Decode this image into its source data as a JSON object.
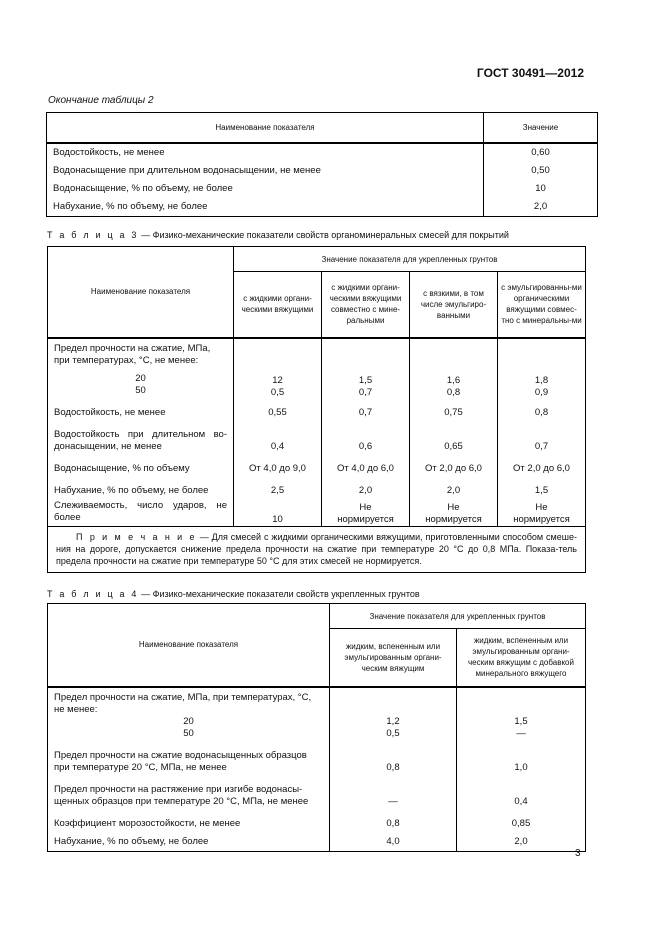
{
  "header": {
    "doc": "ГОСТ 30491—2012"
  },
  "table2": {
    "continuation": "Окончание таблицы 2",
    "col_name": "Наименование показателя",
    "col_value": "Значение",
    "rows": [
      [
        "Водостойкость, не менее",
        "0,60"
      ],
      [
        "Водонасыщение при длительном водонасыщении, не менее",
        "0,50"
      ],
      [
        "Водонасыщение, % по объему, не более",
        "10"
      ],
      [
        "Набухание, % по объему, не более",
        "2,0"
      ]
    ]
  },
  "table3": {
    "label": "Т а б л и ц а  3",
    "title": "— Физико-механические показатели свойств органоминеральных смесей для покрытий",
    "col_name": "Наименование показателя",
    "group": "Значение показателя для укрепленных грунтов",
    "cols": [
      "с жидкими органи-ческими вяжущими",
      "с жидкими органи-ческими вяжущими совместно с мине-ральными",
      "с вязкими, в том числе эмульгиро-ванными",
      "с эмульгированны-ми органическими вяжущими совмес-тно с минеральны-ми"
    ],
    "strength": {
      "label": "Предел прочности на сжатие, МПа, при температурах, °С, не менее:",
      "t20": "20",
      "t50": "50",
      "v20": [
        "12",
        "1,5",
        "1,6",
        "1,8"
      ],
      "v50": [
        "0,5",
        "0,7",
        "0,8",
        "0,9"
      ]
    },
    "rows": [
      {
        "label": "Водостойкость, не менее",
        "v": [
          "0,55",
          "0,7",
          "0,75",
          "0,8"
        ]
      },
      {
        "label": "Водостойкость при длительном во-донасыщении, не менее",
        "v": [
          "0,4",
          "0,6",
          "0,65",
          "0,7"
        ]
      },
      {
        "label": "Водонасыщение, % по объему",
        "v": [
          "От 4,0 до 9,0",
          "От 4,0 до 6,0",
          "От 2,0 до 6,0",
          "От 2,0 до 6,0"
        ]
      },
      {
        "label": "Набухание, % по объему, не более",
        "v": [
          "2,5",
          "2,0",
          "2,0",
          "1,5"
        ]
      },
      {
        "label": "Слеживаемость, число ударов, не более",
        "v": [
          "10",
          "Не нормируется",
          "Не нормируется",
          "Не нормируется"
        ]
      }
    ],
    "note_label": "П р и м е ч а н и е",
    "note": "— Для смесей с жидкими органическими вяжущими, приготовленными способом смеше-ния на дороге, допускается снижение предела прочности на сжатие при температуре 20 °С до 0,8 МПа. Показа-тель предела прочности на сжатие при температуре 50 °С для этих смесей не нормируется."
  },
  "table4": {
    "label": "Т а б л и ц а  4",
    "title": "— Физико-механические показатели свойств укрепленных грунтов",
    "col_name": "Наименование показателя",
    "group": "Значение показателя для укрепленных грунтов",
    "cols": [
      "жидким, вспененным или эмульгированным органи-ческим вяжущим",
      "жидким, вспененным или эмульгированным органи-ческим вяжущим с добавкой минерального вяжущего"
    ],
    "strength": {
      "label": "Предел прочности на сжатие, МПа, при температурах, °С, не менее:",
      "t20": "20",
      "t50": "50",
      "v20": [
        "1,2",
        "1,5"
      ],
      "v50": [
        "0,5",
        "—"
      ]
    },
    "rows": [
      {
        "label": "Предел прочности на сжатие водонасыщенных образцов при температуре 20 °С, МПа, не менее",
        "v": [
          "0,8",
          "1,0"
        ]
      },
      {
        "label": "Предел прочности на растяжение при изгибе водонасы-щенных образцов при температуре 20 °С, МПа, не менее",
        "v": [
          "—",
          "0,4"
        ]
      },
      {
        "label": "Коэффициент морозостойкости, не менее",
        "v": [
          "0,8",
          "0,85"
        ]
      },
      {
        "label": "Набухание, % по объему, не более",
        "v": [
          "4,0",
          "2,0"
        ]
      }
    ]
  },
  "page_number": "3"
}
